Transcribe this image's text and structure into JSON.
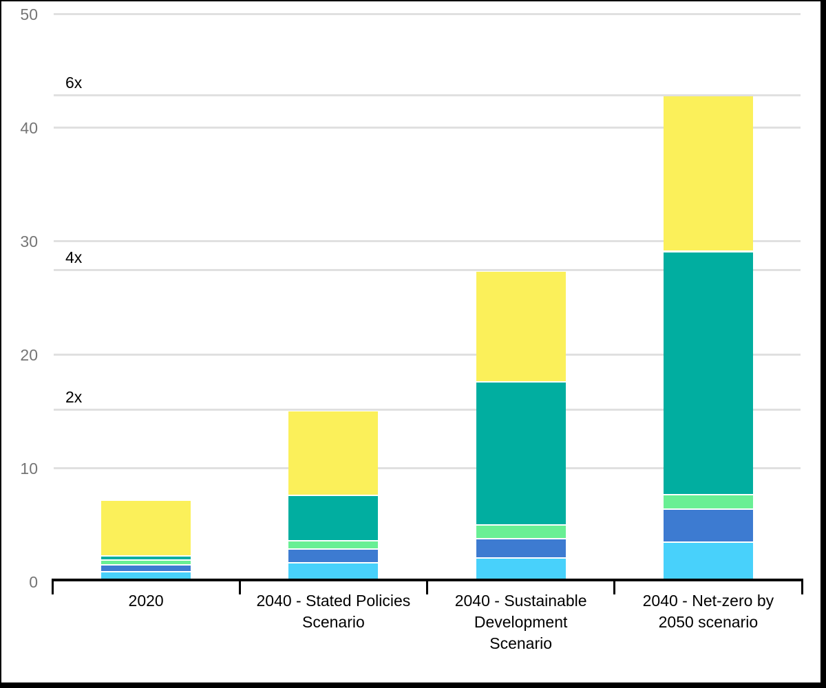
{
  "chart_data": {
    "type": "bar",
    "stacked": true,
    "title": "",
    "xlabel": "",
    "ylabel": "",
    "legend": "none",
    "grid": true,
    "ylim": [
      0,
      50
    ],
    "yticks": [
      0,
      10,
      20,
      30,
      40,
      50
    ],
    "categories": [
      "2020",
      "2040 - Stated Policies Scenario",
      "2040 - Sustainable Development Scenario",
      "2040 - Net-zero by 2050 scenario"
    ],
    "category_label_lines": [
      [
        "2020"
      ],
      [
        "2040 - Stated Policies",
        "Scenario"
      ],
      [
        "2040 - Sustainable",
        "Development",
        "Scenario"
      ],
      [
        "2040 - Net-zero by",
        "2050 scenario"
      ]
    ],
    "series": [
      {
        "name": "series-light-blue",
        "color": "#48d1fb",
        "values": [
          0.8,
          1.6,
          2.0,
          3.4
        ]
      },
      {
        "name": "series-blue",
        "color": "#3d7bd1",
        "values": [
          0.6,
          1.2,
          1.7,
          2.9
        ]
      },
      {
        "name": "series-light-green",
        "color": "#69ef94",
        "values": [
          0.4,
          0.7,
          1.2,
          1.3
        ]
      },
      {
        "name": "series-teal",
        "color": "#01aea0",
        "values": [
          0.4,
          4.0,
          12.6,
          21.4
        ]
      },
      {
        "name": "series-yellow",
        "color": "#fbf05a",
        "values": [
          4.9,
          7.5,
          9.8,
          13.7
        ]
      }
    ],
    "stack_order": "bottom-to-top",
    "totals": [
      7.1,
      15.0,
      27.3,
      42.7
    ],
    "annotations": [
      {
        "label": "2x",
        "value": 15.0,
        "category_index": 1
      },
      {
        "label": "4x",
        "value": 27.3,
        "category_index": 2
      },
      {
        "label": "6x",
        "value": 42.7,
        "category_index": 3
      }
    ],
    "annotation_note": "reference gridlines drawn at the top of each 2040 bar, labelled with growth multiple vs 2020",
    "style": {
      "gridline_color": "#e0e0e0",
      "axis_color": "#000000",
      "y_tick_label_color": "#757575",
      "x_tick_label_color": "#000000",
      "annotation_color": "#000000",
      "background_color": "#ffffff",
      "frame_border_color": "#000000"
    }
  }
}
